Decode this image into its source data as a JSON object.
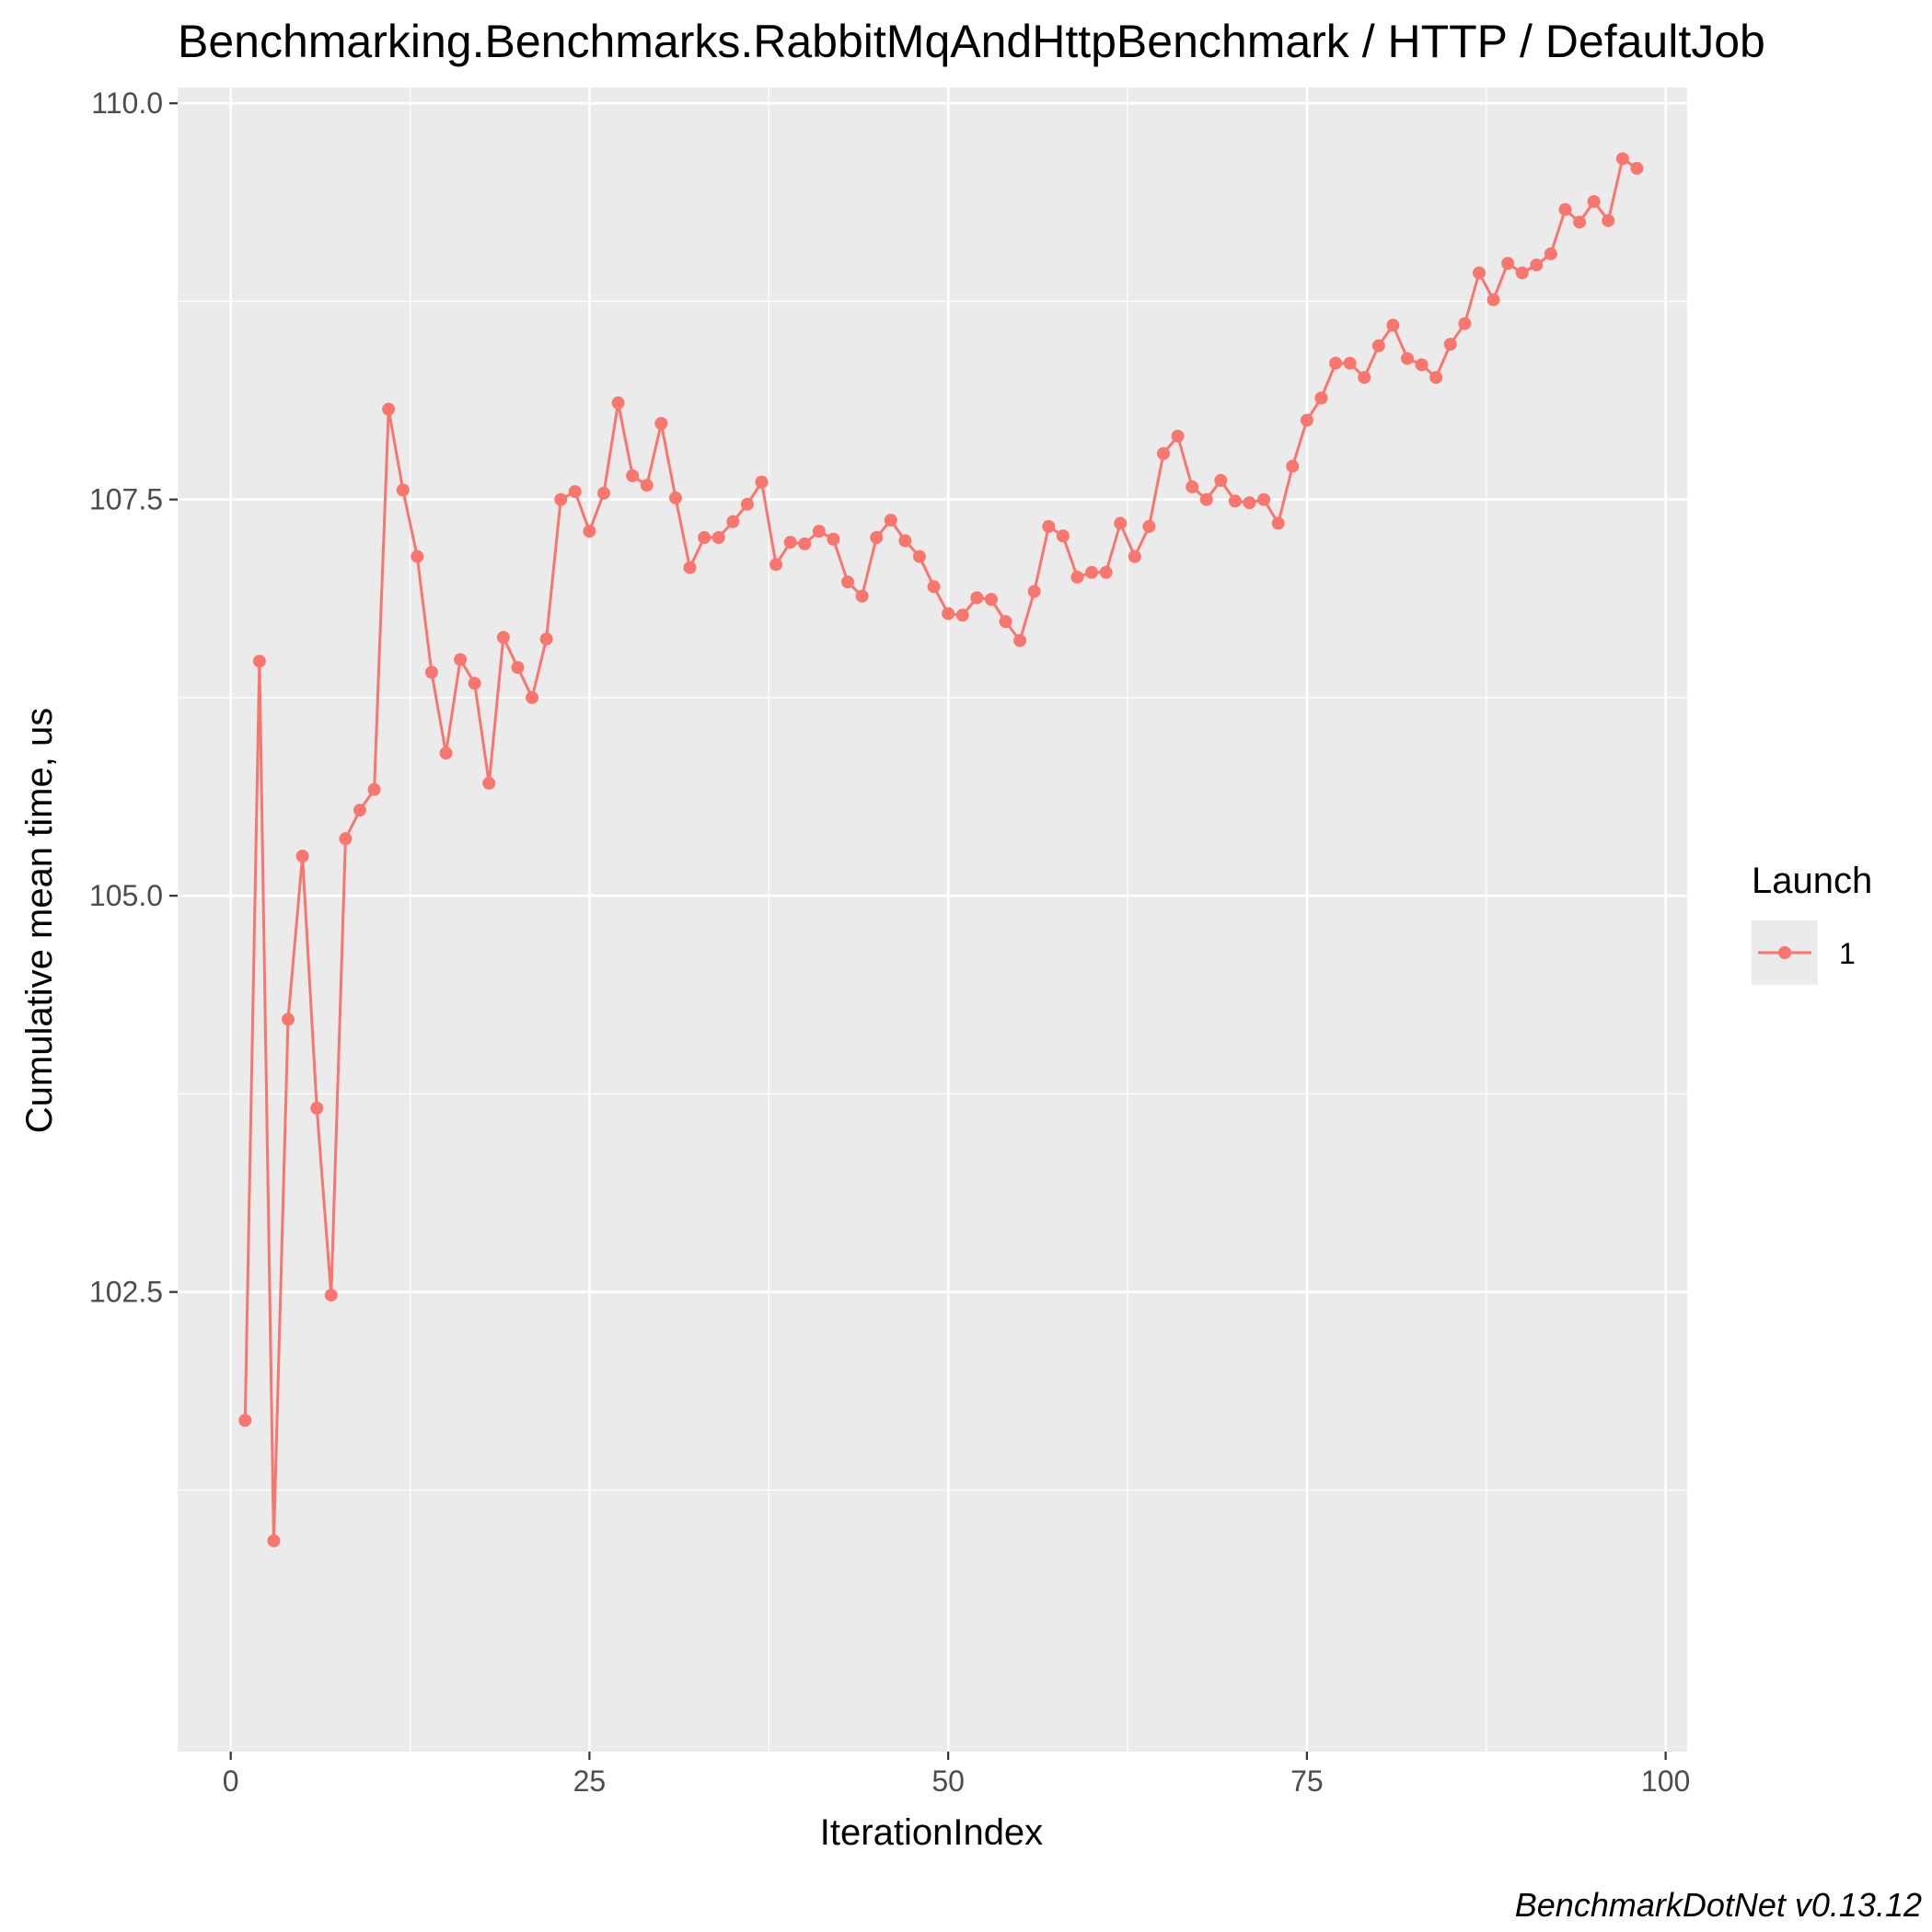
{
  "chart_data": {
    "type": "line",
    "title": "Benchmarking.Benchmarks.RabbitMqAndHttpBenchmark / HTTP / DefaultJob",
    "xlabel": "IterationIndex",
    "ylabel": "Cumulative mean time, us",
    "xlim": [
      -3.7,
      101.5
    ],
    "ylim": [
      99.6,
      110.1
    ],
    "x_ticks": [
      0,
      25,
      50,
      75,
      100
    ],
    "x_tick_labels": [
      "0",
      "25",
      "50",
      "75",
      "100"
    ],
    "y_ticks": [
      102.5,
      105.0,
      107.5,
      110.0
    ],
    "y_tick_labels": [
      "102.5",
      "105.0",
      "107.5",
      "110.0"
    ],
    "grid": true,
    "legend": {
      "title": "Launch",
      "position": "right",
      "entries": [
        "1"
      ]
    },
    "colors": {
      "series": "#f8766d",
      "panel": "#ebebeb",
      "grid": "#ffffff"
    },
    "series": [
      {
        "name": "1",
        "x": [
          1,
          2,
          3,
          4,
          5,
          6,
          7,
          8,
          9,
          10,
          11,
          12,
          13,
          14,
          15,
          16,
          17,
          18,
          19,
          20,
          21,
          22,
          23,
          24,
          25,
          26,
          27,
          28,
          29,
          30,
          31,
          32,
          33,
          34,
          35,
          36,
          37,
          38,
          39,
          40,
          41,
          42,
          43,
          44,
          45,
          46,
          47,
          48,
          49,
          50,
          51,
          52,
          53,
          54,
          55,
          56,
          57,
          58,
          59,
          60,
          61,
          62,
          63,
          64,
          65,
          66,
          67,
          68,
          69,
          70,
          71,
          72,
          73,
          74,
          75,
          76,
          77,
          78,
          79,
          80,
          81,
          82,
          83,
          84,
          85,
          86,
          87,
          88,
          89,
          90,
          91,
          92,
          93,
          94,
          95,
          96,
          97,
          98
        ],
        "values": [
          101.69,
          106.48,
          100.93,
          104.22,
          105.25,
          103.66,
          102.48,
          105.36,
          105.54,
          105.67,
          108.07,
          107.56,
          107.14,
          106.41,
          105.9,
          106.49,
          106.34,
          105.71,
          106.63,
          106.44,
          106.25,
          106.62,
          107.5,
          107.55,
          107.3,
          107.54,
          108.11,
          107.65,
          107.59,
          107.98,
          107.51,
          107.07,
          107.26,
          107.26,
          107.36,
          107.47,
          107.61,
          107.09,
          107.23,
          107.22,
          107.3,
          107.25,
          106.98,
          106.89,
          107.26,
          107.37,
          107.24,
          107.14,
          106.95,
          106.78,
          106.77,
          106.88,
          106.87,
          106.73,
          106.61,
          106.92,
          107.33,
          107.27,
          107.01,
          107.04,
          107.04,
          107.35,
          107.14,
          107.33,
          107.79,
          107.9,
          107.58,
          107.5,
          107.62,
          107.49,
          107.48,
          107.5,
          107.35,
          107.71,
          108.0,
          108.14,
          108.36,
          108.36,
          108.27,
          108.47,
          108.6,
          108.39,
          108.35,
          108.27,
          108.48,
          108.61,
          108.93,
          108.76,
          108.99,
          108.93,
          108.98,
          109.05,
          109.33,
          109.25,
          109.38,
          109.26,
          109.65,
          109.59
        ]
      }
    ]
  },
  "caption": "BenchmarkDotNet v0.13.12"
}
